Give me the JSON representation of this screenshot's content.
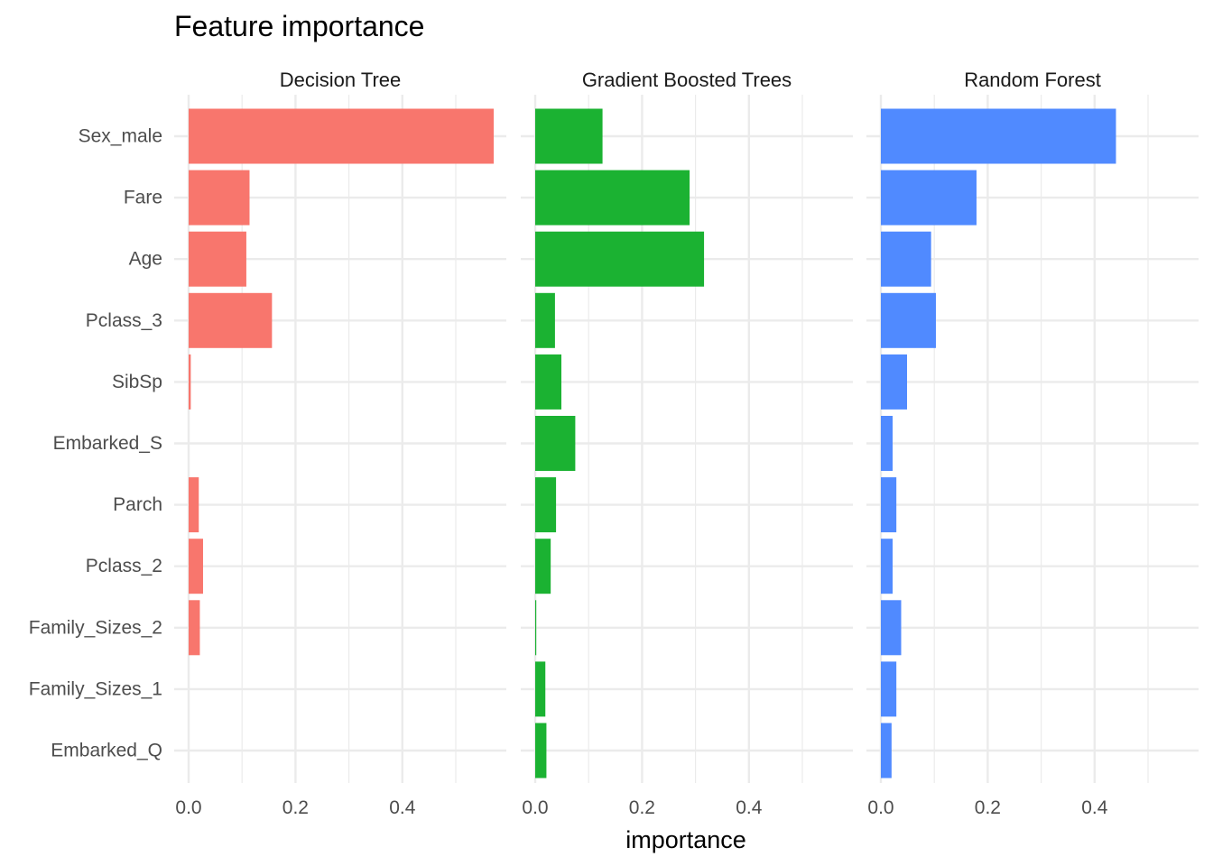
{
  "chart_data": {
    "type": "bar",
    "orientation": "horizontal",
    "title": "Feature importance",
    "xlabel": "importance",
    "ylabel": "",
    "xlim": [
      0,
      0.57
    ],
    "x_ticks": [
      0.0,
      0.2,
      0.4
    ],
    "x_tick_labels": [
      "0.0",
      "0.2",
      "0.4"
    ],
    "grid": true,
    "legend": "none",
    "categories": [
      "Sex_male",
      "Fare",
      "Age",
      "Pclass_3",
      "SibSp",
      "Embarked_S",
      "Parch",
      "Pclass_2",
      "Family_Sizes_2",
      "Family_Sizes_1",
      "Embarked_Q"
    ],
    "series": [
      {
        "name": "Decision Tree",
        "color": "#F8766D",
        "values": [
          0.571,
          0.114,
          0.108,
          0.156,
          0.004,
          0.0,
          0.019,
          0.027,
          0.021,
          0.0,
          0.0
        ]
      },
      {
        "name": "Gradient Boosted Trees",
        "color": "#1BB232",
        "values": [
          0.126,
          0.289,
          0.316,
          0.037,
          0.049,
          0.075,
          0.039,
          0.029,
          0.002,
          0.019,
          0.021
        ]
      },
      {
        "name": "Random Forest",
        "color": "#508AFF",
        "values": [
          0.44,
          0.179,
          0.094,
          0.103,
          0.049,
          0.022,
          0.029,
          0.022,
          0.038,
          0.029,
          0.02
        ]
      }
    ]
  }
}
